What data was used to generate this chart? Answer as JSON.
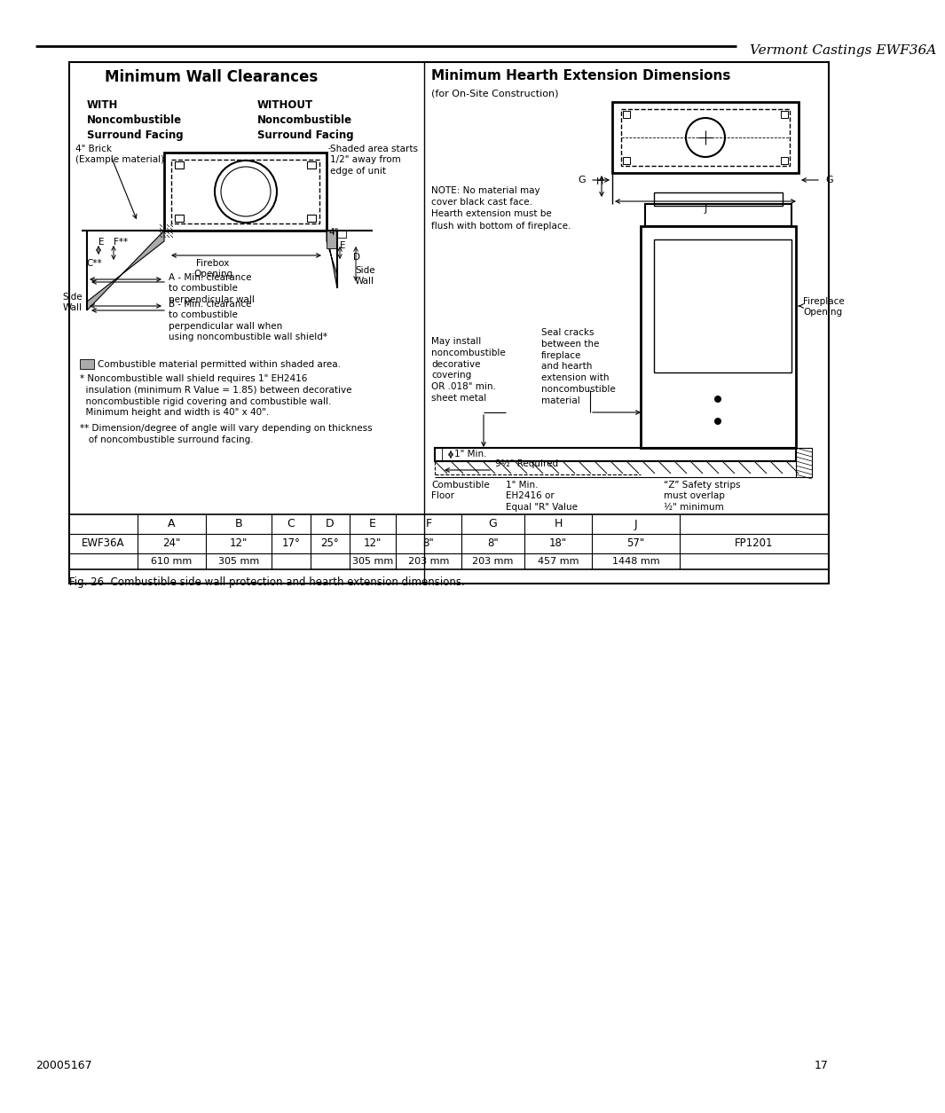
{
  "page_title": "Vermont Castings EWF36A",
  "left_title": "Minimum Wall Clearances",
  "right_title": "Minimum Hearth Extension Dimensions",
  "right_subtitle": "(for On-Site Construction)",
  "page_number": "17",
  "doc_number": "20005167",
  "fig_caption": "Fig. 26  Combustible side wall protection and hearth extension dimensions.",
  "table_headers": [
    "",
    "A",
    "B",
    "C",
    "D",
    "E",
    "F",
    "G",
    "H",
    "J",
    ""
  ],
  "table_row1": [
    "EWF36A",
    "24\"",
    "12\"",
    "17°",
    "25°",
    "12\"",
    "8\"",
    "8\"",
    "18\"",
    "57\"",
    "FP1201"
  ],
  "table_row2": [
    "",
    "610 mm",
    "305 mm",
    "",
    "",
    "305 mm",
    "203 mm",
    "203 mm",
    "457 mm",
    "1448 mm",
    ""
  ],
  "bg_color": "#ffffff",
  "shade_color": "#aaaaaa"
}
